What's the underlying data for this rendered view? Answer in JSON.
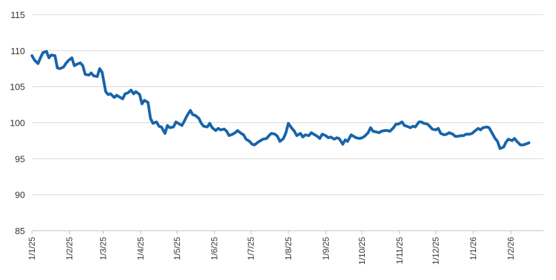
{
  "chart_data": {
    "type": "line",
    "title": "",
    "xlabel": "",
    "ylabel": "",
    "ylim": [
      85,
      115
    ],
    "y_ticks": [
      "85",
      "90",
      "95",
      "100",
      "105",
      "110",
      "115"
    ],
    "y_tick_values": [
      85,
      90,
      95,
      100,
      105,
      110,
      115
    ],
    "x_tick_labels": [
      "1/1/25",
      "1/2/25",
      "1/3/25",
      "1/4/25",
      "1/5/25",
      "1/6/25",
      "1/7/25",
      "1/8/25",
      "1/9/25",
      "1/10/25",
      "1/11/25",
      "1/12/25",
      "1/1/26",
      "1/2/26"
    ],
    "x_domain": [
      "2025-01-01",
      "2026-02-28"
    ],
    "grid": "horizontal",
    "legend": "none",
    "color": "#1764ab",
    "series": [
      {
        "points": [
          [
            "2025-01-01",
            109.3
          ],
          [
            "2025-01-03",
            108.7
          ],
          [
            "2025-01-06",
            108.2
          ],
          [
            "2025-01-08",
            109.0
          ],
          [
            "2025-01-10",
            109.7
          ],
          [
            "2025-01-13",
            109.9
          ],
          [
            "2025-01-15",
            109.0
          ],
          [
            "2025-01-17",
            109.4
          ],
          [
            "2025-01-20",
            109.3
          ],
          [
            "2025-01-22",
            107.6
          ],
          [
            "2025-01-24",
            107.5
          ],
          [
            "2025-01-27",
            107.7
          ],
          [
            "2025-01-29",
            108.2
          ],
          [
            "2025-01-31",
            108.6
          ],
          [
            "2025-02-03",
            109.0
          ],
          [
            "2025-02-05",
            107.9
          ],
          [
            "2025-02-07",
            108.1
          ],
          [
            "2025-02-10",
            108.3
          ],
          [
            "2025-02-12",
            107.9
          ],
          [
            "2025-02-14",
            106.7
          ],
          [
            "2025-02-17",
            106.6
          ],
          [
            "2025-02-19",
            106.9
          ],
          [
            "2025-02-21",
            106.5
          ],
          [
            "2025-02-24",
            106.4
          ],
          [
            "2025-02-26",
            107.5
          ],
          [
            "2025-02-28",
            107.0
          ],
          [
            "2025-03-03",
            104.3
          ],
          [
            "2025-03-05",
            103.9
          ],
          [
            "2025-03-07",
            104.0
          ],
          [
            "2025-03-10",
            103.5
          ],
          [
            "2025-03-12",
            103.8
          ],
          [
            "2025-03-14",
            103.6
          ],
          [
            "2025-03-17",
            103.3
          ],
          [
            "2025-03-19",
            104.0
          ],
          [
            "2025-03-21",
            104.1
          ],
          [
            "2025-03-24",
            104.5
          ],
          [
            "2025-03-26",
            104.0
          ],
          [
            "2025-03-28",
            104.3
          ],
          [
            "2025-03-31",
            103.9
          ],
          [
            "2025-04-02",
            102.6
          ],
          [
            "2025-04-04",
            103.1
          ],
          [
            "2025-04-07",
            102.8
          ],
          [
            "2025-04-09",
            100.6
          ],
          [
            "2025-04-11",
            99.9
          ],
          [
            "2025-04-14",
            100.1
          ],
          [
            "2025-04-16",
            99.5
          ],
          [
            "2025-04-18",
            99.4
          ],
          [
            "2025-04-21",
            98.5
          ],
          [
            "2025-04-23",
            99.6
          ],
          [
            "2025-04-25",
            99.3
          ],
          [
            "2025-04-28",
            99.4
          ],
          [
            "2025-04-30",
            100.1
          ],
          [
            "2025-05-02",
            99.9
          ],
          [
            "2025-05-05",
            99.6
          ],
          [
            "2025-05-07",
            100.2
          ],
          [
            "2025-05-09",
            100.9
          ],
          [
            "2025-05-12",
            101.7
          ],
          [
            "2025-05-14",
            101.1
          ],
          [
            "2025-05-16",
            101.0
          ],
          [
            "2025-05-19",
            100.6
          ],
          [
            "2025-05-21",
            99.9
          ],
          [
            "2025-05-23",
            99.5
          ],
          [
            "2025-05-26",
            99.4
          ],
          [
            "2025-05-28",
            99.9
          ],
          [
            "2025-05-30",
            99.3
          ],
          [
            "2025-06-02",
            98.9
          ],
          [
            "2025-06-04",
            99.2
          ],
          [
            "2025-06-06",
            99.0
          ],
          [
            "2025-06-09",
            99.1
          ],
          [
            "2025-06-11",
            98.8
          ],
          [
            "2025-06-13",
            98.2
          ],
          [
            "2025-06-16",
            98.4
          ],
          [
            "2025-06-18",
            98.6
          ],
          [
            "2025-06-20",
            98.9
          ],
          [
            "2025-06-23",
            98.5
          ],
          [
            "2025-06-25",
            98.3
          ],
          [
            "2025-06-27",
            97.7
          ],
          [
            "2025-06-30",
            97.4
          ],
          [
            "2025-07-02",
            97.0
          ],
          [
            "2025-07-04",
            96.9
          ],
          [
            "2025-07-07",
            97.3
          ],
          [
            "2025-07-09",
            97.5
          ],
          [
            "2025-07-11",
            97.7
          ],
          [
            "2025-07-14",
            97.8
          ],
          [
            "2025-07-16",
            98.2
          ],
          [
            "2025-07-18",
            98.5
          ],
          [
            "2025-07-21",
            98.4
          ],
          [
            "2025-07-23",
            98.1
          ],
          [
            "2025-07-25",
            97.4
          ],
          [
            "2025-07-28",
            97.8
          ],
          [
            "2025-07-30",
            98.6
          ],
          [
            "2025-08-01",
            99.9
          ],
          [
            "2025-08-04",
            99.2
          ],
          [
            "2025-08-06",
            98.8
          ],
          [
            "2025-08-08",
            98.2
          ],
          [
            "2025-08-11",
            98.5
          ],
          [
            "2025-08-13",
            98.0
          ],
          [
            "2025-08-15",
            98.3
          ],
          [
            "2025-08-18",
            98.2
          ],
          [
            "2025-08-20",
            98.6
          ],
          [
            "2025-08-22",
            98.4
          ],
          [
            "2025-08-25",
            98.1
          ],
          [
            "2025-08-27",
            97.8
          ],
          [
            "2025-08-29",
            98.4
          ],
          [
            "2025-09-01",
            98.2
          ],
          [
            "2025-09-03",
            97.9
          ],
          [
            "2025-09-05",
            98.0
          ],
          [
            "2025-09-08",
            97.7
          ],
          [
            "2025-09-10",
            97.9
          ],
          [
            "2025-09-12",
            97.8
          ],
          [
            "2025-09-15",
            97.0
          ],
          [
            "2025-09-17",
            97.6
          ],
          [
            "2025-09-19",
            97.4
          ],
          [
            "2025-09-22",
            98.3
          ],
          [
            "2025-09-24",
            98.1
          ],
          [
            "2025-09-26",
            97.9
          ],
          [
            "2025-09-29",
            97.8
          ],
          [
            "2025-10-01",
            97.9
          ],
          [
            "2025-10-03",
            98.1
          ],
          [
            "2025-10-06",
            98.6
          ],
          [
            "2025-10-08",
            99.3
          ],
          [
            "2025-10-10",
            98.8
          ],
          [
            "2025-10-13",
            98.7
          ],
          [
            "2025-10-15",
            98.6
          ],
          [
            "2025-10-17",
            98.8
          ],
          [
            "2025-10-20",
            98.9
          ],
          [
            "2025-10-22",
            98.9
          ],
          [
            "2025-10-24",
            98.8
          ],
          [
            "2025-10-27",
            99.3
          ],
          [
            "2025-10-29",
            99.8
          ],
          [
            "2025-10-31",
            99.8
          ],
          [
            "2025-11-03",
            100.1
          ],
          [
            "2025-11-05",
            99.6
          ],
          [
            "2025-11-07",
            99.5
          ],
          [
            "2025-11-10",
            99.3
          ],
          [
            "2025-11-12",
            99.5
          ],
          [
            "2025-11-14",
            99.4
          ],
          [
            "2025-11-17",
            100.1
          ],
          [
            "2025-11-19",
            100.1
          ],
          [
            "2025-11-21",
            99.9
          ],
          [
            "2025-11-24",
            99.8
          ],
          [
            "2025-11-26",
            99.5
          ],
          [
            "2025-11-28",
            99.1
          ],
          [
            "2025-12-01",
            99.0
          ],
          [
            "2025-12-03",
            99.2
          ],
          [
            "2025-12-05",
            98.5
          ],
          [
            "2025-12-08",
            98.3
          ],
          [
            "2025-12-10",
            98.4
          ],
          [
            "2025-12-12",
            98.6
          ],
          [
            "2025-12-15",
            98.4
          ],
          [
            "2025-12-17",
            98.1
          ],
          [
            "2025-12-19",
            98.1
          ],
          [
            "2025-12-22",
            98.2
          ],
          [
            "2025-12-24",
            98.2
          ],
          [
            "2025-12-26",
            98.4
          ],
          [
            "2025-12-29",
            98.4
          ],
          [
            "2025-12-31",
            98.5
          ],
          [
            "2026-01-02",
            98.8
          ],
          [
            "2026-01-05",
            99.2
          ],
          [
            "2026-01-07",
            99.0
          ],
          [
            "2026-01-09",
            99.3
          ],
          [
            "2026-01-12",
            99.4
          ],
          [
            "2026-01-14",
            99.3
          ],
          [
            "2026-01-16",
            98.7
          ],
          [
            "2026-01-19",
            97.8
          ],
          [
            "2026-01-21",
            97.4
          ],
          [
            "2026-01-23",
            96.4
          ],
          [
            "2026-01-26",
            96.6
          ],
          [
            "2026-01-28",
            97.3
          ],
          [
            "2026-01-30",
            97.7
          ],
          [
            "2026-02-02",
            97.5
          ],
          [
            "2026-02-04",
            97.8
          ],
          [
            "2026-02-06",
            97.4
          ],
          [
            "2026-02-09",
            96.9
          ],
          [
            "2026-02-11",
            96.9
          ],
          [
            "2026-02-13",
            97.0
          ],
          [
            "2026-02-16",
            97.2
          ]
        ]
      }
    ]
  }
}
